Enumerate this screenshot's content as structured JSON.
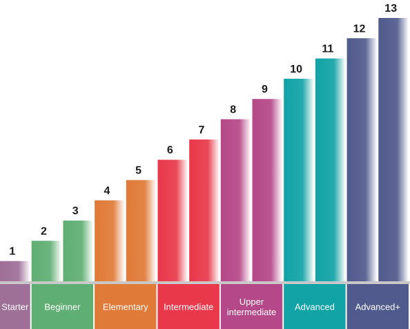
{
  "chart_data": {
    "type": "bar",
    "categories": [
      "1",
      "2",
      "3",
      "4",
      "5",
      "6",
      "7",
      "8",
      "9",
      "10",
      "11",
      "12",
      "13"
    ],
    "values": [
      1,
      2,
      3,
      4,
      5,
      6,
      7,
      8,
      9,
      10,
      11,
      12,
      13
    ],
    "bar_band_index": [
      0,
      1,
      1,
      2,
      2,
      3,
      3,
      4,
      4,
      5,
      5,
      6,
      6
    ],
    "bands": [
      {
        "label": "Starter",
        "color": "#9e6f97"
      },
      {
        "label": "Beginner",
        "color": "#5fae73"
      },
      {
        "label": "Elementary",
        "color": "#e07a38"
      },
      {
        "label": "Intermediate",
        "color": "#e8384a"
      },
      {
        "label": "Upper\nintermediate",
        "color": "#b54888"
      },
      {
        "label": "Advanced",
        "color": "#12a3a6"
      },
      {
        "label": "Advanced+",
        "color": "#505a8c"
      }
    ],
    "title": "",
    "xlabel": "",
    "ylabel": "",
    "ylim": [
      0,
      13
    ]
  }
}
